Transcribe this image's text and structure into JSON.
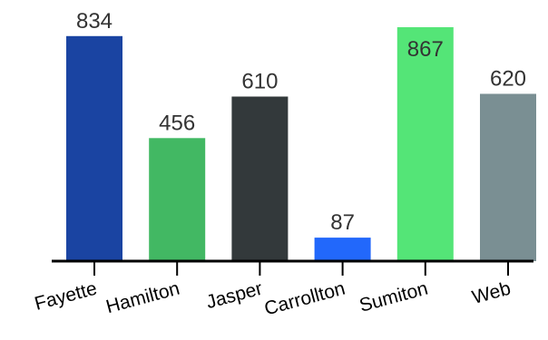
{
  "chart_data": {
    "type": "bar",
    "categories": [
      "Fayette",
      "Hamilton",
      "Jasper",
      "Carrollton",
      "Sumiton",
      "Web"
    ],
    "values": [
      834,
      456,
      610,
      87,
      867,
      620
    ],
    "colors": [
      "#1a44a2",
      "#42b863",
      "#33393b",
      "#2268fb",
      "#54e577",
      "#7a8f93"
    ],
    "ylim": [
      0,
      867
    ],
    "grid": false,
    "legend": "none"
  }
}
